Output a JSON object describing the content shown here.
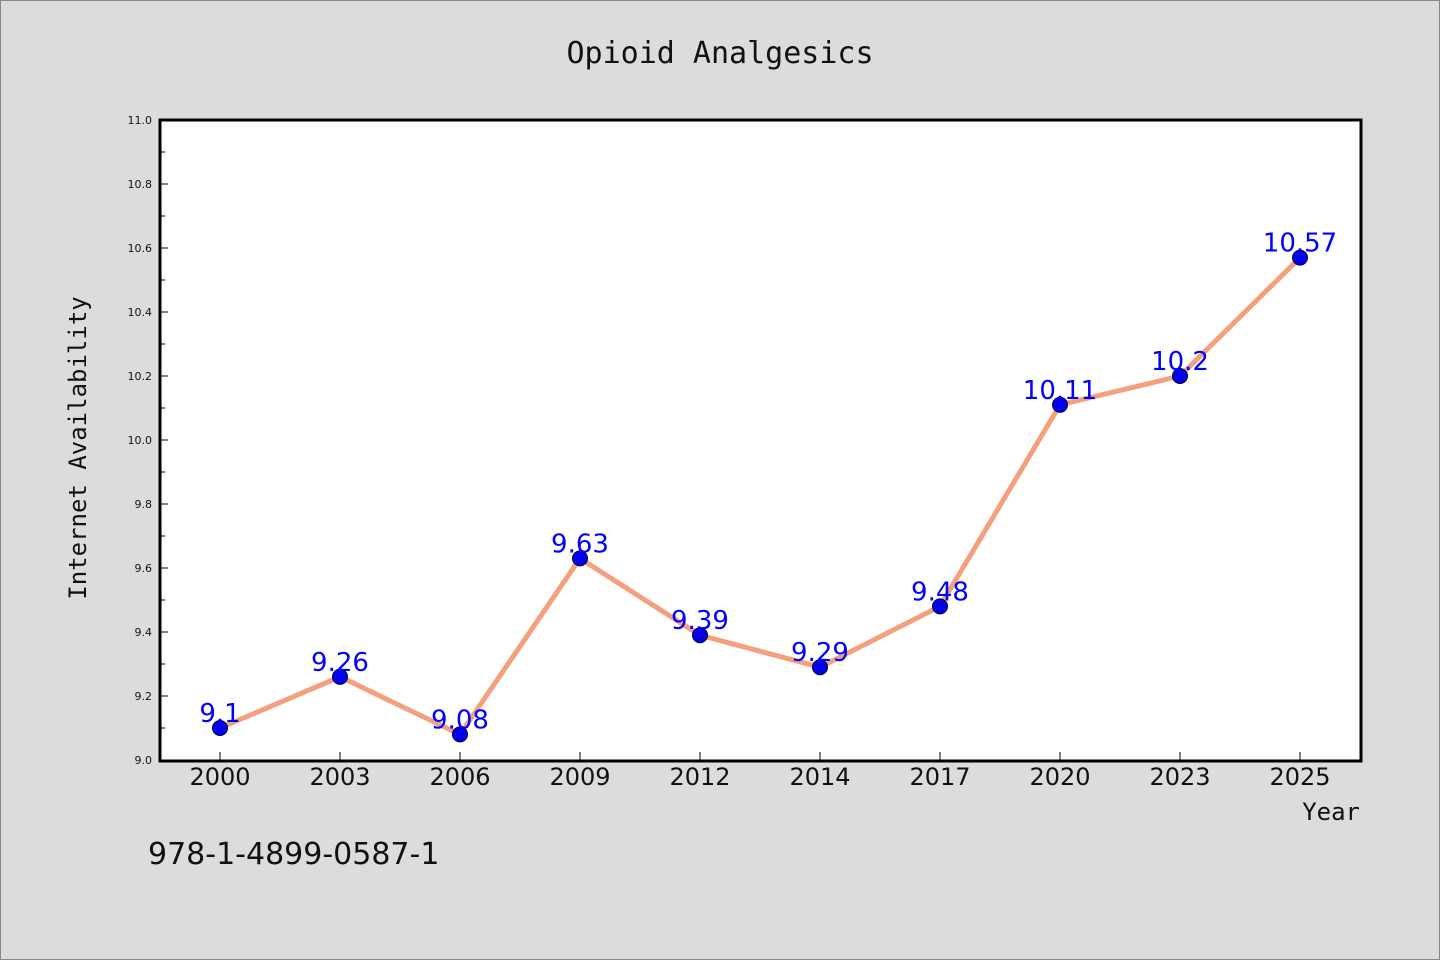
{
  "chart_data": {
    "type": "line",
    "title": "Opioid Analgesics",
    "xlabel": "Year",
    "ylabel": "Internet Availability",
    "categories": [
      "2000",
      "2003",
      "2006",
      "2009",
      "2012",
      "2014",
      "2017",
      "2020",
      "2023",
      "2025"
    ],
    "series": [
      {
        "values": [
          9.1,
          9.26,
          9.08,
          9.63,
          9.39,
          9.29,
          9.48,
          10.11,
          10.2,
          10.57
        ],
        "labels": [
          "9.1",
          "9.26",
          "9.08",
          "9.63",
          "9.39",
          "9.29",
          "9.48",
          "10.11",
          "10.2",
          "10.57"
        ]
      }
    ],
    "ylim": [
      9.0,
      11.0
    ],
    "yticks": [
      "9.0",
      "9.2",
      "9.4",
      "9.6",
      "9.8",
      "10.0",
      "10.2",
      "10.4",
      "10.6",
      "10.8",
      "11.0"
    ],
    "grid": false,
    "legend": "none",
    "colors": {
      "line": "#f4a07e",
      "marker": "#0000ee",
      "label": "#0000ff",
      "plot_bg": "#ffffff",
      "page_bg": "#dcdcdc"
    }
  },
  "footer": {
    "text": "978-1-4899-0587-1"
  }
}
